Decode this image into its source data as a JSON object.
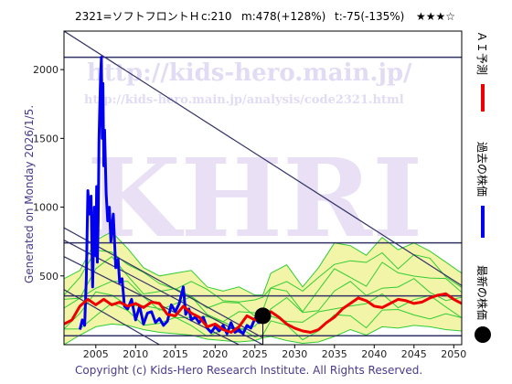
{
  "header": {
    "code_name": "2321=ソフトフロントＨ",
    "current": "c:210",
    "m_stat": "m:478(+128%)",
    "t_stat": "t:-75(-135%)",
    "rating": "★★★☆"
  },
  "side_label": "Generated on Monday 2026/1/5.",
  "legend": {
    "forecast": "ＡＩ予測",
    "past": "過去の株価",
    "latest": "最新の株価"
  },
  "watermarks": {
    "url_main": "http://kids-hero.main.jp/",
    "url_analysis": "http://kids-hero.main.jp/analysis/code2321.html",
    "big": "KHRI",
    "bottom": "kids-hero.main.jp"
  },
  "footer": "Copyright (c) Kids-Hero Research Institute. All Rights Reserved.",
  "colors": {
    "past": "#0000ee",
    "forecast": "#ee0000",
    "band": "#33cc33",
    "band_fill": "#f2f5a8",
    "hline": "#333366",
    "trend": "#333366",
    "tick_text": "#222222"
  },
  "chart_data": {
    "type": "line",
    "xlim": [
      2001.0,
      2051.0
    ],
    "ylim": [
      0,
      2280
    ],
    "x_ticks": [
      "2005",
      "2010",
      "2015",
      "2020",
      "2025",
      "2030",
      "2035",
      "2040",
      "2045",
      "2050"
    ],
    "y_ticks": [
      "500",
      "1000",
      "1500",
      "2000"
    ],
    "x_tick_values": [
      2005,
      2010,
      2015,
      2020,
      2025,
      2030,
      2035,
      2040,
      2045,
      2050
    ],
    "y_tick_values": [
      500,
      1000,
      1500,
      2000
    ],
    "latest_point": {
      "x": 2026.0,
      "y": 210
    },
    "horizontal_lines": [
      2090,
      740,
      355,
      65
    ],
    "trend_lines": [
      {
        "x": [
          2001.0,
          2051.0
        ],
        "y": [
          2280,
          430
        ]
      },
      {
        "x": [
          2001.0,
          2026.0
        ],
        "y": [
          850,
          50
        ]
      },
      {
        "x": [
          2001.0,
          2026.0
        ],
        "y": [
          760,
          0
        ]
      },
      {
        "x": [
          2001.0,
          2023.0
        ],
        "y": [
          640,
          0
        ]
      },
      {
        "x": [
          2001.0,
          2013.0
        ],
        "y": [
          400,
          0
        ]
      }
    ],
    "series": [
      {
        "values": [
          [
            2003.0,
            110
          ],
          [
            2003.3,
            180
          ],
          [
            2003.6,
            140
          ],
          [
            2003.8,
            480
          ],
          [
            2004.0,
            1120
          ],
          [
            2004.2,
            950
          ],
          [
            2004.4,
            1080
          ],
          [
            2004.6,
            420
          ],
          [
            2004.8,
            1000
          ],
          [
            2005.0,
            650
          ],
          [
            2005.1,
            1150
          ],
          [
            2005.2,
            600
          ],
          [
            2005.3,
            900
          ],
          [
            2005.4,
            1500
          ],
          [
            2005.5,
            1750
          ],
          [
            2005.6,
            1950
          ],
          [
            2005.7,
            2090
          ],
          [
            2005.8,
            1500
          ],
          [
            2005.9,
            1900
          ],
          [
            2006.0,
            1300
          ],
          [
            2006.1,
            1560
          ],
          [
            2006.3,
            1100
          ],
          [
            2006.5,
            900
          ],
          [
            2006.7,
            1000
          ],
          [
            2006.9,
            750
          ],
          [
            2007.2,
            950
          ],
          [
            2007.5,
            560
          ],
          [
            2007.8,
            620
          ],
          [
            2008.0,
            450
          ],
          [
            2008.3,
            480
          ],
          [
            2008.6,
            280
          ],
          [
            2009.0,
            260
          ],
          [
            2009.5,
            330
          ],
          [
            2010.0,
            180
          ],
          [
            2010.5,
            280
          ],
          [
            2011.0,
            150
          ],
          [
            2011.5,
            230
          ],
          [
            2012.0,
            240
          ],
          [
            2012.5,
            160
          ],
          [
            2013.0,
            190
          ],
          [
            2013.5,
            140
          ],
          [
            2014.0,
            170
          ],
          [
            2014.5,
            290
          ],
          [
            2015.0,
            240
          ],
          [
            2015.5,
            300
          ],
          [
            2016.0,
            420
          ],
          [
            2016.3,
            220
          ],
          [
            2016.7,
            260
          ],
          [
            2017.0,
            180
          ],
          [
            2017.5,
            200
          ],
          [
            2018.0,
            160
          ],
          [
            2018.5,
            200
          ],
          [
            2019.0,
            120
          ],
          [
            2019.5,
            90
          ],
          [
            2020.0,
            130
          ],
          [
            2020.5,
            100
          ],
          [
            2021.0,
            140
          ],
          [
            2021.5,
            80
          ],
          [
            2022.0,
            160
          ],
          [
            2022.5,
            90
          ],
          [
            2023.0,
            110
          ],
          [
            2023.5,
            80
          ],
          [
            2024.0,
            140
          ],
          [
            2024.5,
            120
          ],
          [
            2025.0,
            190
          ],
          [
            2025.5,
            160
          ],
          [
            2026.0,
            210
          ]
        ]
      },
      {
        "values": [
          [
            2001.0,
            150
          ],
          [
            2002.0,
            180
          ],
          [
            2003.0,
            280
          ],
          [
            2004.0,
            330
          ],
          [
            2005.0,
            290
          ],
          [
            2006.0,
            330
          ],
          [
            2007.0,
            290
          ],
          [
            2008.0,
            310
          ],
          [
            2009.0,
            280
          ],
          [
            2010.0,
            300
          ],
          [
            2011.0,
            270
          ],
          [
            2012.0,
            310
          ],
          [
            2013.0,
            300
          ],
          [
            2014.0,
            220
          ],
          [
            2015.0,
            210
          ],
          [
            2016.0,
            280
          ],
          [
            2017.0,
            230
          ],
          [
            2018.0,
            200
          ],
          [
            2019.0,
            130
          ],
          [
            2020.0,
            150
          ],
          [
            2021.0,
            110
          ],
          [
            2022.0,
            90
          ],
          [
            2023.0,
            130
          ],
          [
            2024.0,
            210
          ],
          [
            2025.0,
            180
          ],
          [
            2026.0,
            210
          ],
          [
            2027.0,
            240
          ],
          [
            2028.0,
            200
          ],
          [
            2029.0,
            150
          ],
          [
            2030.0,
            120
          ],
          [
            2031.0,
            100
          ],
          [
            2032.0,
            90
          ],
          [
            2033.0,
            110
          ],
          [
            2034.0,
            160
          ],
          [
            2035.0,
            200
          ],
          [
            2036.0,
            260
          ],
          [
            2037.0,
            300
          ],
          [
            2038.0,
            340
          ],
          [
            2039.0,
            320
          ],
          [
            2040.0,
            280
          ],
          [
            2041.0,
            270
          ],
          [
            2042.0,
            300
          ],
          [
            2043.0,
            330
          ],
          [
            2044.0,
            320
          ],
          [
            2045.0,
            300
          ],
          [
            2046.0,
            310
          ],
          [
            2047.0,
            340
          ],
          [
            2048.0,
            360
          ],
          [
            2049.0,
            370
          ],
          [
            2050.0,
            330
          ],
          [
            2051.0,
            300
          ]
        ]
      }
    ],
    "band": {
      "x": [
        2001.0,
        2003.0,
        2005.0,
        2007.0,
        2009.0,
        2011.0,
        2013.0,
        2015.0,
        2017.0,
        2019.0,
        2021.0,
        2023.0,
        2025.0,
        2026.0,
        2027.0,
        2029.0,
        2031.0,
        2033.0,
        2035.0,
        2037.0,
        2039.0,
        2041.0,
        2043.0,
        2045.0,
        2047.0,
        2049.0,
        2051.0
      ],
      "upper": [
        480,
        540,
        760,
        820,
        700,
        560,
        500,
        520,
        540,
        420,
        390,
        420,
        360,
        360,
        520,
        580,
        420,
        560,
        740,
        720,
        650,
        780,
        690,
        740,
        680,
        600,
        520
      ],
      "lower": [
        0,
        70,
        130,
        150,
        140,
        110,
        90,
        80,
        70,
        40,
        30,
        20,
        30,
        50,
        60,
        30,
        10,
        20,
        60,
        110,
        70,
        130,
        120,
        140,
        130,
        110,
        100
      ]
    }
  }
}
